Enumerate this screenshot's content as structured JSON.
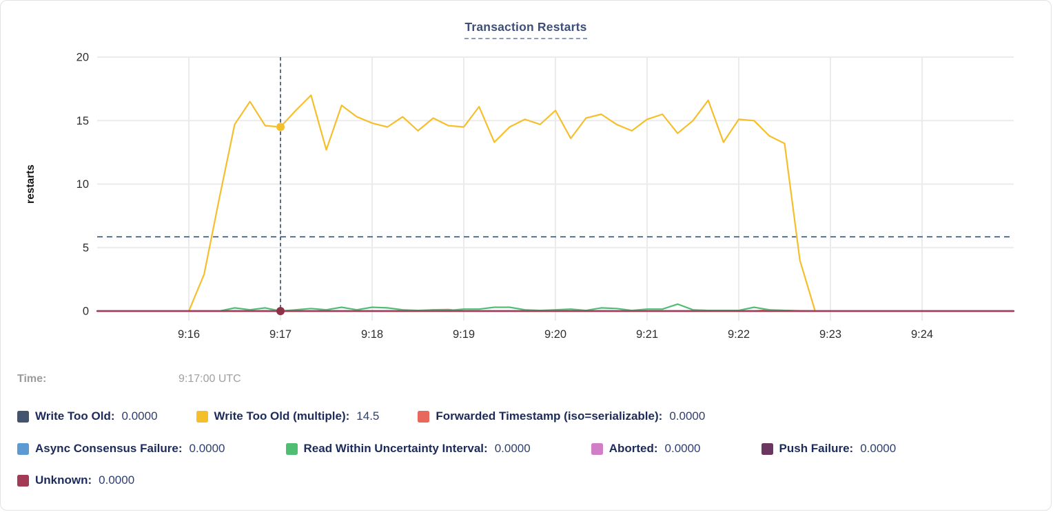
{
  "header": {
    "title": "Transaction Restarts"
  },
  "tooltip": {
    "time_label": "Time:",
    "time_value": "9:17:00 UTC"
  },
  "legend": {
    "items": [
      {
        "label": "Write Too Old:",
        "value": "0.0000",
        "color": "#44536e"
      },
      {
        "label": "Write Too Old (multiple):",
        "value": "14.5",
        "color": "#f5be2b"
      },
      {
        "label": "Forwarded Timestamp (iso=serializable):",
        "value": "0.0000",
        "color": "#e8695c"
      },
      {
        "label": "Async Consensus Failure:",
        "value": "0.0000",
        "color": "#5c9bd1"
      },
      {
        "label": "Read Within Uncertainty Interval:",
        "value": "0.0000",
        "color": "#4fbe72"
      },
      {
        "label": "Aborted:",
        "value": "0.0000",
        "color": "#d27ec6"
      },
      {
        "label": "Push Failure:",
        "value": "0.0000",
        "color": "#6b3660"
      },
      {
        "label": "Unknown:",
        "value": "0.0000",
        "color": "#a23b55"
      }
    ]
  },
  "chart_data": {
    "type": "line",
    "title": "Transaction Restarts",
    "xlabel": "",
    "ylabel": "restarts",
    "ylim": [
      0,
      20
    ],
    "yticks": [
      0,
      5,
      10,
      15,
      20
    ],
    "x_domain_seconds": [
      0,
      600
    ],
    "x_domain_note": "seconds after 9:15:00 UTC",
    "xticks": [
      {
        "t": 60,
        "label": "9:16"
      },
      {
        "t": 120,
        "label": "9:17"
      },
      {
        "t": 180,
        "label": "9:18"
      },
      {
        "t": 240,
        "label": "9:19"
      },
      {
        "t": 300,
        "label": "9:20"
      },
      {
        "t": 360,
        "label": "9:21"
      },
      {
        "t": 420,
        "label": "9:22"
      },
      {
        "t": 480,
        "label": "9:23"
      },
      {
        "t": 540,
        "label": "9:24"
      }
    ],
    "grid": true,
    "legend_position": "bottom",
    "hover": {
      "t": 120,
      "time_label": "9:17:00 UTC",
      "highlight_series": "Write Too Old (multiple)",
      "value": 14.5,
      "baseline_dot_value": 0,
      "hline_value": 5.85
    },
    "colors": {
      "gridline": "#ebebeb",
      "crosshair": "#3e5b77",
      "hline": "#53718e",
      "tick_text": "#2e2e2e"
    },
    "series": [
      {
        "name": "Write Too Old",
        "color": "#44536e",
        "points": [
          [
            0,
            0
          ],
          [
            600,
            0
          ]
        ]
      },
      {
        "name": "Write Too Old (multiple)",
        "color": "#f5be2b",
        "points": [
          [
            60,
            0
          ],
          [
            70,
            2.9
          ],
          [
            80,
            8.9
          ],
          [
            90,
            14.7
          ],
          [
            100,
            16.5
          ],
          [
            110,
            14.6
          ],
          [
            120,
            14.5
          ],
          [
            130,
            15.8
          ],
          [
            140,
            17.0
          ],
          [
            150,
            12.7
          ],
          [
            160,
            16.2
          ],
          [
            170,
            15.3
          ],
          [
            180,
            14.8
          ],
          [
            190,
            14.5
          ],
          [
            200,
            15.3
          ],
          [
            210,
            14.2
          ],
          [
            220,
            15.2
          ],
          [
            230,
            14.6
          ],
          [
            240,
            14.5
          ],
          [
            250,
            16.1
          ],
          [
            260,
            13.3
          ],
          [
            270,
            14.5
          ],
          [
            280,
            15.1
          ],
          [
            290,
            14.7
          ],
          [
            300,
            15.8
          ],
          [
            310,
            13.6
          ],
          [
            320,
            15.2
          ],
          [
            330,
            15.5
          ],
          [
            340,
            14.7
          ],
          [
            350,
            14.2
          ],
          [
            360,
            15.1
          ],
          [
            370,
            15.5
          ],
          [
            380,
            14.0
          ],
          [
            390,
            15.0
          ],
          [
            400,
            16.6
          ],
          [
            410,
            13.3
          ],
          [
            420,
            15.1
          ],
          [
            430,
            15.0
          ],
          [
            440,
            13.8
          ],
          [
            450,
            13.2
          ],
          [
            460,
            4.0
          ],
          [
            470,
            0
          ]
        ]
      },
      {
        "name": "Forwarded Timestamp (iso=serializable)",
        "color": "#e8695c",
        "points": [
          [
            60,
            0
          ],
          [
            210,
            0
          ],
          [
            220,
            0.1
          ],
          [
            230,
            0.12
          ],
          [
            240,
            0
          ],
          [
            430,
            0
          ],
          [
            440,
            0.08
          ],
          [
            450,
            0.05
          ],
          [
            470,
            0
          ]
        ]
      },
      {
        "name": "Async Consensus Failure",
        "color": "#5c9bd1",
        "points": [
          [
            0,
            0
          ],
          [
            600,
            0
          ]
        ]
      },
      {
        "name": "Read Within Uncertainty Interval",
        "color": "#4fbe72",
        "points": [
          [
            80,
            0
          ],
          [
            90,
            0.25
          ],
          [
            100,
            0.1
          ],
          [
            110,
            0.25
          ],
          [
            120,
            0
          ],
          [
            130,
            0.1
          ],
          [
            140,
            0.2
          ],
          [
            150,
            0.1
          ],
          [
            160,
            0.3
          ],
          [
            170,
            0.1
          ],
          [
            180,
            0.3
          ],
          [
            190,
            0.25
          ],
          [
            200,
            0.1
          ],
          [
            210,
            0.05
          ],
          [
            220,
            0.1
          ],
          [
            230,
            0.05
          ],
          [
            240,
            0.15
          ],
          [
            250,
            0.15
          ],
          [
            260,
            0.3
          ],
          [
            270,
            0.3
          ],
          [
            280,
            0.1
          ],
          [
            290,
            0.05
          ],
          [
            300,
            0.1
          ],
          [
            310,
            0.15
          ],
          [
            320,
            0.05
          ],
          [
            330,
            0.25
          ],
          [
            340,
            0.2
          ],
          [
            350,
            0.05
          ],
          [
            360,
            0.15
          ],
          [
            370,
            0.15
          ],
          [
            380,
            0.55
          ],
          [
            390,
            0.1
          ],
          [
            400,
            0.05
          ],
          [
            410,
            0.05
          ],
          [
            420,
            0.05
          ],
          [
            430,
            0.3
          ],
          [
            440,
            0.1
          ],
          [
            450,
            0.05
          ],
          [
            460,
            0
          ],
          [
            470,
            0
          ]
        ]
      },
      {
        "name": "Aborted",
        "color": "#d27ec6",
        "points": [
          [
            0,
            0
          ],
          [
            600,
            0
          ]
        ]
      },
      {
        "name": "Push Failure",
        "color": "#6b3660",
        "points": [
          [
            0,
            0
          ],
          [
            600,
            0
          ]
        ]
      },
      {
        "name": "Unknown",
        "color": "#a23b55",
        "points": [
          [
            0,
            0
          ],
          [
            600,
            0
          ]
        ]
      }
    ]
  }
}
